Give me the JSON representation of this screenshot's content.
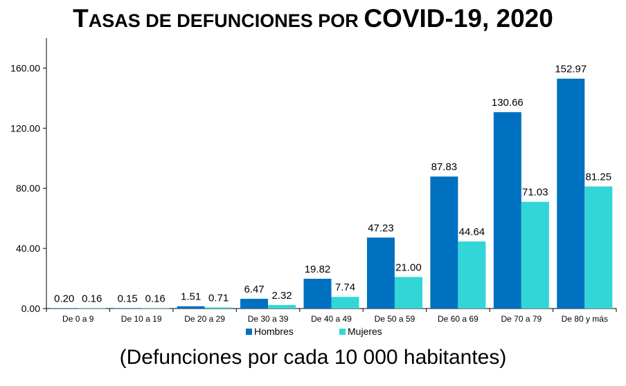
{
  "title": {
    "part1_initial": "T",
    "part1_rest": "ASAS DE DEFUNCIONES POR ",
    "part2": "COVID-19, 2020"
  },
  "subtitle": "(Defunciones por cada 10 000 habitantes)",
  "chart_data": {
    "type": "bar",
    "title": "TASAS DE DEFUNCIONES POR COVID-19, 2020",
    "subtitle": "(Defunciones por cada 10 000 habitantes)",
    "categories": [
      "De 0 a 9",
      "De 10 a 19",
      "De 20 a 29",
      "De 30 a 39",
      "De 40 a 49",
      "De 50 a 59",
      "De 60 a 69",
      "De 70 a 79",
      "De 80 y más"
    ],
    "series": [
      {
        "name": "Hombres",
        "color": "#0070c0",
        "values": [
          0.2,
          0.15,
          1.51,
          6.47,
          19.82,
          47.23,
          87.83,
          130.66,
          152.97
        ],
        "labels": [
          "0.20",
          "0.15",
          "1.51",
          "6.47",
          "19.82",
          "47.23",
          "87.83",
          "130.66",
          "152.97"
        ]
      },
      {
        "name": "Mujeres",
        "color": "#33d6d6",
        "values": [
          0.16,
          0.16,
          0.71,
          2.32,
          7.74,
          21.0,
          44.64,
          71.03,
          81.25
        ],
        "labels": [
          "0.16",
          "0.16",
          "0.71",
          "2.32",
          "7.74",
          "21.00",
          "44.64",
          "71.03",
          "81.25"
        ]
      }
    ],
    "ylim": [
      0,
      180
    ],
    "yticks": [
      0,
      40,
      80,
      120,
      160
    ],
    "ytick_labels": [
      "0.00",
      "40.00",
      "80.00",
      "120.00",
      "160.00"
    ],
    "grid": false,
    "legend_position": "bottom-center",
    "xlabel": "",
    "ylabel": ""
  }
}
